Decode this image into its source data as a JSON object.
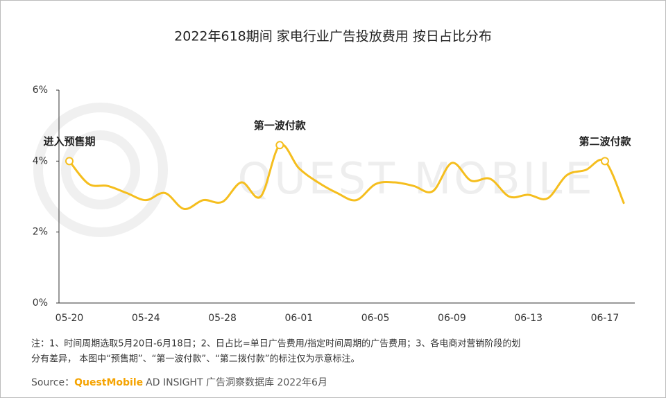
{
  "chart_data": {
    "type": "line",
    "title": "2022年618期间 家电行业广告投放费用 按日占比分布",
    "watermark": "QUEST MOBILE",
    "categories": [
      "05-20",
      null,
      null,
      null,
      "05-24",
      null,
      null,
      null,
      "05-28",
      null,
      null,
      null,
      "06-01",
      null,
      null,
      null,
      "06-05",
      null,
      null,
      null,
      "06-09",
      null,
      null,
      null,
      "06-13",
      null,
      null,
      null,
      "06-17",
      null
    ],
    "series": [
      {
        "color": "#f5be1e",
        "values": [
          4.0,
          3.36,
          3.3,
          3.1,
          2.9,
          3.1,
          2.65,
          2.9,
          2.85,
          3.4,
          3.0,
          4.45,
          3.8,
          3.4,
          3.1,
          2.9,
          3.35,
          3.4,
          3.3,
          3.15,
          3.95,
          3.45,
          3.5,
          3.0,
          3.05,
          2.95,
          3.6,
          3.75,
          4.0,
          2.8
        ]
      }
    ],
    "ylim": [
      0,
      6
    ],
    "yticks": [
      {
        "value": 0,
        "label": "0%"
      },
      {
        "value": 2,
        "label": "2%"
      },
      {
        "value": 4,
        "label": "4%"
      },
      {
        "value": 6,
        "label": "6%"
      }
    ],
    "annotations": [
      {
        "text": "进入预售期",
        "point": 0
      },
      {
        "text": "第一波付款",
        "point": 11
      },
      {
        "text": "第二波付款",
        "point": 28
      }
    ],
    "note": [
      "注：1、时间周期选取5月20日-6月18日；2、日占比=单日广告费用/指定时间周期的广告费用；3、各电商对营销阶段的划",
      "分有差异， 本图中“预售期”、“第一波付款”、“第二拨付款”的标注仅为示意标注。"
    ],
    "source": {
      "label": "Source：",
      "brand": "QuestMobile",
      "text": "AD INSIGHT 广告洞察数据库 2022年6月"
    }
  }
}
